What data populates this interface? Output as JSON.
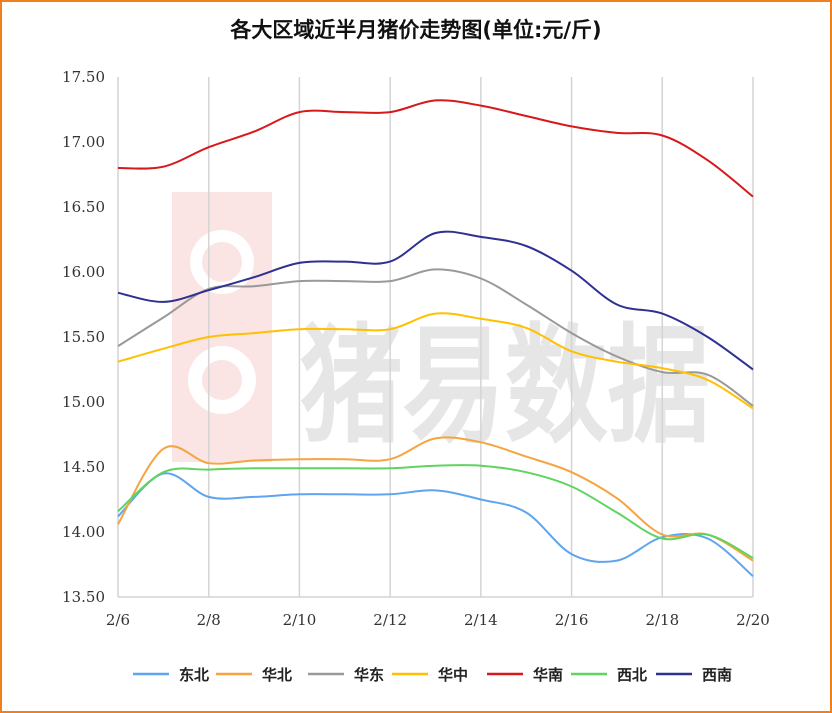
{
  "chart_data": {
    "type": "line",
    "title": "各大区域近半月猪价走势图(单位:元/斤)",
    "xlabel": "",
    "ylabel": "",
    "x": [
      "2/6",
      "2/7",
      "2/8",
      "2/9",
      "2/10",
      "2/11",
      "2/12",
      "2/13",
      "2/14",
      "2/15",
      "2/16",
      "2/17",
      "2/18",
      "2/19",
      "2/20"
    ],
    "x_tick_labels": [
      "2/6",
      "2/8",
      "2/10",
      "2/12",
      "2/14",
      "2/16",
      "2/18",
      "2/20"
    ],
    "ylim": [
      13.5,
      17.5
    ],
    "y_ticks": [
      "13.50",
      "14.00",
      "14.50",
      "15.00",
      "15.50",
      "16.00",
      "16.50",
      "17.00",
      "17.50"
    ],
    "grid": "vertical",
    "legend_position": "bottom",
    "series": [
      {
        "name": "东北",
        "color": "#5ea5ef",
        "values": [
          14.12,
          14.45,
          14.27,
          14.27,
          14.29,
          14.29,
          14.29,
          14.32,
          14.25,
          14.15,
          13.83,
          13.78,
          13.96,
          13.95,
          13.66
        ]
      },
      {
        "name": "华北",
        "color": "#f5a442",
        "values": [
          14.06,
          14.64,
          14.53,
          14.55,
          14.56,
          14.56,
          14.56,
          14.72,
          14.69,
          14.58,
          14.46,
          14.26,
          13.98,
          13.98,
          13.78
        ]
      },
      {
        "name": "华东",
        "color": "#999999",
        "values": [
          15.43,
          15.65,
          15.87,
          15.89,
          15.93,
          15.93,
          15.93,
          16.02,
          15.95,
          15.75,
          15.53,
          15.35,
          15.23,
          15.21,
          14.97
        ]
      },
      {
        "name": "华中",
        "color": "#ffc000",
        "values": [
          15.31,
          15.41,
          15.5,
          15.53,
          15.56,
          15.56,
          15.56,
          15.68,
          15.64,
          15.57,
          15.39,
          15.31,
          15.26,
          15.17,
          14.95
        ]
      },
      {
        "name": "华南",
        "color": "#d7191c",
        "values": [
          16.8,
          16.81,
          16.96,
          17.08,
          17.23,
          17.23,
          17.23,
          17.32,
          17.28,
          17.2,
          17.12,
          17.07,
          17.05,
          16.86,
          16.58
        ]
      },
      {
        "name": "西北",
        "color": "#5fd45f",
        "values": [
          14.16,
          14.46,
          14.48,
          14.49,
          14.49,
          14.49,
          14.49,
          14.51,
          14.51,
          14.46,
          14.35,
          14.15,
          13.95,
          13.98,
          13.8
        ]
      },
      {
        "name": "西南",
        "color": "#2e3192",
        "values": [
          15.84,
          15.77,
          15.86,
          15.96,
          16.07,
          16.08,
          16.08,
          16.3,
          16.27,
          16.2,
          16.01,
          15.75,
          15.68,
          15.5,
          15.25
        ]
      }
    ]
  },
  "watermark": {
    "text": "猪易数据",
    "color": "#e54b4b"
  }
}
